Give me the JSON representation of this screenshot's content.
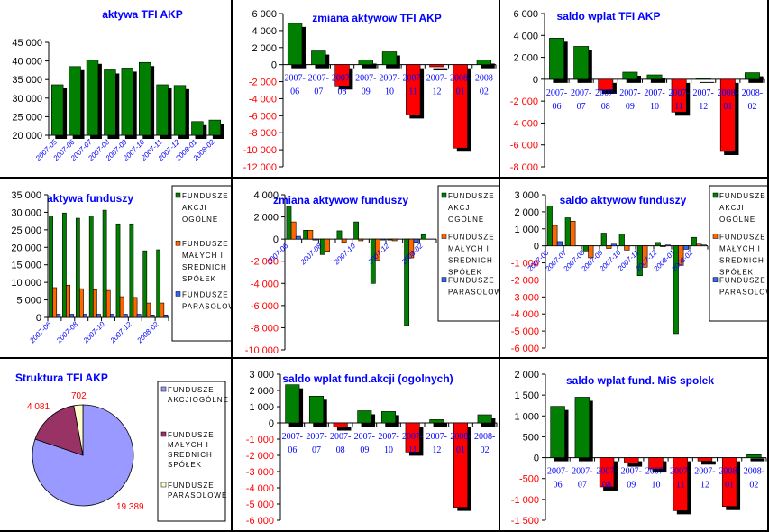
{
  "colors": {
    "green": "#007f00",
    "red": "#ff0000",
    "orange": "#ff6600",
    "blue": "#3366ff",
    "title": "#0000ff",
    "neg_tick": "#ff0000",
    "pie": [
      "#9999ff",
      "#993366",
      "#ffffcc"
    ]
  },
  "chart_data": [
    {
      "id": "aktywa_tfi",
      "type": "bar",
      "title": "aktywa TFI AKP",
      "categories": [
        "2007-05",
        "2007-06",
        "2007-07",
        "2007-08",
        "2007-09",
        "2007-10",
        "2007-11",
        "2007-12",
        "2008-01",
        "2008-02"
      ],
      "values": [
        33600,
        38500,
        40200,
        37600,
        38100,
        39600,
        33600,
        33400,
        23700,
        24100
      ],
      "ylim": [
        20000,
        45000
      ],
      "yticks": [
        20000,
        25000,
        30000,
        35000,
        40000,
        45000
      ],
      "ytick_labels": [
        "20 000",
        "25 000",
        "30 000",
        "35 000",
        "40 000",
        "45 000"
      ],
      "xlabels_rotated": true,
      "legend": "none"
    },
    {
      "id": "zmiana_tfi",
      "type": "bar",
      "title": "zmiana aktywow TFI AKP",
      "categories": [
        "2007-\n06",
        "2007-\n07",
        "2007-\n08",
        "2007-\n09",
        "2007-\n10",
        "2007-\n11",
        "2007-\n12",
        "2008-\n01",
        "2008\n02"
      ],
      "values": [
        4850,
        1600,
        -2500,
        550,
        1500,
        -5900,
        -250,
        -9800,
        550
      ],
      "ylim": [
        -12000,
        6000
      ],
      "yticks": [
        -12000,
        -10000,
        -8000,
        -6000,
        -4000,
        -2000,
        0,
        2000,
        4000,
        6000
      ],
      "ytick_labels": [
        "-12 000",
        "-10 000",
        "-8 000",
        "-6 000",
        "-4 000",
        "-2 000",
        "0",
        "2 000",
        "4 000",
        "6 000"
      ],
      "legend": "none"
    },
    {
      "id": "saldo_tfi",
      "type": "bar",
      "title": "saldo wplat TFI AKP",
      "categories": [
        "2007-\n06",
        "2007-\n07",
        "2007-\n08",
        "2007-\n09",
        "2007-\n10",
        "2007-\n11",
        "2007-\n12",
        "2008-\n01",
        "2008-\n02"
      ],
      "values": [
        3750,
        3000,
        -1000,
        650,
        400,
        -3000,
        80,
        -6600,
        600
      ],
      "ylim": [
        -8000,
        6000
      ],
      "yticks": [
        -8000,
        -6000,
        -4000,
        -2000,
        0,
        2000,
        4000,
        6000
      ],
      "ytick_labels": [
        "-8 000",
        "-6 000",
        "-4 000",
        "-2 000",
        "0",
        "2 000",
        "4 000",
        "6 000"
      ],
      "legend": "none"
    },
    {
      "id": "aktywa_funduszy",
      "type": "bar",
      "title": "aktywa funduszy",
      "categories": [
        "2007-06",
        "2007-07",
        "2007-08",
        "2007-09",
        "2007-10",
        "2007-11",
        "2007-12",
        "2008-01",
        "2008-02"
      ],
      "tick_labels": [
        "2007-06",
        "",
        "2007-08",
        "",
        "2007-10",
        "",
        "2007-12",
        "",
        "2008-02"
      ],
      "series": [
        {
          "name": "FUNDUSZE AKCJI OGÓLNE",
          "values": [
            29000,
            29800,
            28300,
            29000,
            30600,
            26700,
            26700,
            19000,
            19300
          ]
        },
        {
          "name": "FUNDUSZE MAŁYCH I SREDNICH SPÓŁEK",
          "values": [
            8500,
            9200,
            8200,
            7900,
            7700,
            5900,
            5700,
            4100,
            4100
          ]
        },
        {
          "name": "FUNDUSZE PARASOLOWE",
          "values": [
            900,
            900,
            900,
            900,
            900,
            900,
            900,
            700,
            700
          ]
        }
      ],
      "ylim": [
        0,
        35000
      ],
      "yticks": [
        0,
        5000,
        10000,
        15000,
        20000,
        25000,
        30000,
        35000
      ],
      "ytick_labels": [
        "0",
        "5 000",
        "10 000",
        "15 000",
        "20 000",
        "25 000",
        "30 000",
        "35 000"
      ],
      "legend": "right"
    },
    {
      "id": "zmiana_funduszy",
      "type": "bar",
      "title": "zmiana aktywow funduszy",
      "categories": [
        "2007-06",
        "2007-07",
        "2007-08",
        "2007-09",
        "2007-10",
        "2007-11",
        "2007-12",
        "2008-01",
        "2008-02"
      ],
      "tick_labels": [
        "2007-06",
        "",
        "2007-08",
        "",
        "2007-10",
        "",
        "2007-12",
        "",
        "2008-02"
      ],
      "series": [
        {
          "name": "FUNDUSZE AKCJI OGÓLNE",
          "values": [
            2950,
            800,
            -1400,
            750,
            1550,
            -4000,
            -50,
            -7800,
            400
          ]
        },
        {
          "name": "FUNDUSZE MAŁYCH I SREDNICH SPÓŁEK",
          "values": [
            1550,
            800,
            -1100,
            -300,
            -150,
            -1900,
            -150,
            -1700,
            0
          ]
        },
        {
          "name": "FUNDUSZE PARASOLOWE",
          "values": [
            250,
            -50,
            0,
            0,
            0,
            -50,
            0,
            -300,
            0
          ]
        }
      ],
      "ylim": [
        -10000,
        4000
      ],
      "yticks": [
        -10000,
        -8000,
        -6000,
        -4000,
        -2000,
        0,
        2000,
        4000
      ],
      "ytick_labels": [
        "-10 000",
        "-8 000",
        "-6 000",
        "-4 000",
        "-2 000",
        "0",
        "2 000",
        "4 000"
      ],
      "legend": "right"
    },
    {
      "id": "saldo_aktywow_funduszy",
      "type": "bar",
      "title": "saldo aktywow funduszy",
      "categories": [
        "2007-06",
        "2007-07",
        "2007-08",
        "2007-09",
        "2007-10",
        "2007-11",
        "2007-12",
        "2008-01",
        "2008-02"
      ],
      "tick_labels": [
        "2007-06",
        "2007-07",
        "2007-08",
        "2007-09",
        "2007-10",
        "2007-11",
        "2007-12",
        "2008-01",
        "2008-02"
      ],
      "series": [
        {
          "name": "FUNDUSZE AKCJI OGÓLNE",
          "values": [
            2350,
            1650,
            -300,
            750,
            700,
            -1750,
            200,
            -5150,
            500
          ]
        },
        {
          "name": "FUNDUSZE MAŁYCH I SREDNICH SPÓŁEK",
          "values": [
            1200,
            1450,
            -700,
            -150,
            -250,
            -1250,
            -50,
            -1150,
            100
          ]
        },
        {
          "name": "FUNDUSZE PARASOLOWE",
          "values": [
            250,
            0,
            0,
            100,
            0,
            0,
            50,
            -200,
            50
          ]
        }
      ],
      "ylim": [
        -6000,
        3000
      ],
      "yticks": [
        -6000,
        -5000,
        -4000,
        -3000,
        -2000,
        -1000,
        0,
        1000,
        2000,
        3000
      ],
      "ytick_labels": [
        "-6 000",
        "-5 000",
        "-4 000",
        "-3 000",
        "-2 000",
        "-1 000",
        "0",
        "1 000",
        "2 000",
        "3 000"
      ],
      "legend": "right"
    },
    {
      "id": "struktura_tfi",
      "type": "pie",
      "title": "Struktura TFI AKP",
      "labels": [
        "FUNDUSZE AKCJIOGÓLNE",
        "FUNDUSZE MAŁYCH I SREDNICH SPÓŁEK",
        "FUNDUSZE PARASOLOWE"
      ],
      "values": [
        19389,
        4081,
        702
      ],
      "value_labels": [
        "19 389",
        "4 081",
        "702"
      ],
      "legend": "right"
    },
    {
      "id": "saldo_akcji",
      "type": "bar",
      "title": "saldo wplat fund.akcji (ogolnych)",
      "categories": [
        "2007-\n06",
        "2007-\n07",
        "2007-\n08",
        "2007-\n09",
        "2007-\n10",
        "2007-\n11",
        "2007-\n12",
        "2008-\n01",
        "2008-\n02"
      ],
      "values": [
        2350,
        1650,
        -250,
        750,
        700,
        -1800,
        200,
        -5200,
        500
      ],
      "ylim": [
        -6000,
        3000
      ],
      "yticks": [
        -6000,
        -5000,
        -4000,
        -3000,
        -2000,
        -1000,
        0,
        1000,
        2000,
        3000
      ],
      "ytick_labels": [
        "-6 000",
        "-5 000",
        "-4 000",
        "-3 000",
        "-2 000",
        "-1 000",
        "0",
        "1 000",
        "2 000",
        "3 000"
      ],
      "legend": "none"
    },
    {
      "id": "saldo_mis",
      "type": "bar",
      "title": "saldo wplat fund. MiS spolek",
      "categories": [
        "2007-\n06",
        "2007-\n07",
        "2007-\n08",
        "2007-\n09",
        "2007-\n10",
        "2007-\n11",
        "2007-\n12",
        "2008-\n01",
        "2008-\n02"
      ],
      "values": [
        1230,
        1450,
        -700,
        -130,
        -270,
        -1270,
        -80,
        -1170,
        70
      ],
      "ylim": [
        -1500,
        2000
      ],
      "yticks": [
        -1500,
        -1000,
        -500,
        0,
        500,
        1000,
        1500,
        2000
      ],
      "ytick_labels": [
        "-1 500",
        "-1 000",
        "-500",
        "0",
        "500",
        "1 000",
        "1 500",
        "2 000"
      ],
      "legend": "none"
    }
  ],
  "legend_lines": {
    "akcji": [
      "FUNDUSZE",
      "AKCJI",
      "OGÓLNE"
    ],
    "mis": [
      "FUNDUSZE",
      "MAŁYCH I",
      "SREDNICH",
      "SPÓŁEK"
    ],
    "paras": [
      "FUNDUSZE",
      "PARASOLOWE"
    ],
    "pie_akcji": [
      "FUNDUSZE",
      "AKCJIOGÓLNE"
    ]
  }
}
